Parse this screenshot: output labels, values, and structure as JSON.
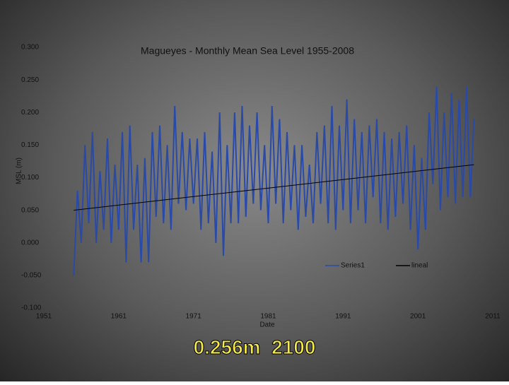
{
  "chart_data": {
    "type": "line",
    "title": "Magueyes - Monthly Mean Sea Level 1955-2008",
    "xlabel": "Date",
    "ylabel": "MSL (m)",
    "xlim": [
      1951,
      2011
    ],
    "xticks": [
      1951,
      1961,
      1971,
      1981,
      1991,
      2001,
      2011
    ],
    "ylim": [
      -0.1,
      0.3
    ],
    "yticks": [
      {
        "value": -0.1,
        "label": "-0.100"
      },
      {
        "value": -0.05,
        "label": "-0.050"
      },
      {
        "value": 0,
        "label": "0.000"
      },
      {
        "value": 0.05,
        "label": "0.050"
      },
      {
        "value": 0.1,
        "label": "0.100"
      },
      {
        "value": 0.15,
        "label": "0.150"
      },
      {
        "value": 0.2,
        "label": "0.200"
      },
      {
        "value": 0.25,
        "label": "0.250"
      },
      {
        "value": 0.3,
        "label": "0.300"
      }
    ],
    "legend": "bottom",
    "series": [
      {
        "name": "Series1",
        "color": "#2a4aa8",
        "x": [
          1955,
          1955.5,
          1956,
          1956.5,
          1957,
          1957.5,
          1958,
          1958.5,
          1959,
          1959.5,
          1960,
          1960.5,
          1961,
          1961.5,
          1962,
          1962.5,
          1963,
          1963.5,
          1964,
          1964.5,
          1965,
          1965.5,
          1966,
          1966.5,
          1967,
          1967.5,
          1968,
          1968.5,
          1969,
          1969.5,
          1970,
          1970.5,
          1971,
          1971.5,
          1972,
          1972.5,
          1973,
          1973.5,
          1974,
          1974.5,
          1975,
          1975.5,
          1976,
          1976.5,
          1977,
          1977.5,
          1978,
          1978.5,
          1979,
          1979.5,
          1980,
          1980.5,
          1981,
          1981.5,
          1982,
          1982.5,
          1983,
          1983.5,
          1984,
          1984.5,
          1985,
          1985.5,
          1986,
          1986.5,
          1987,
          1987.5,
          1988,
          1988.5,
          1989,
          1989.5,
          1990,
          1990.5,
          1991,
          1991.5,
          1992,
          1992.5,
          1993,
          1993.5,
          1994,
          1994.5,
          1995,
          1995.5,
          1996,
          1996.5,
          1997,
          1997.5,
          1998,
          1998.5,
          1999,
          1999.5,
          2000,
          2000.5,
          2001,
          2001.5,
          2002,
          2002.5,
          2003,
          2003.5,
          2004,
          2004.5,
          2005,
          2005.5,
          2006,
          2006.5,
          2007,
          2007.5,
          2008,
          2008.5
        ],
        "values": [
          -0.05,
          0.08,
          0.0,
          0.15,
          0.03,
          0.17,
          0.0,
          0.11,
          0.02,
          0.16,
          0.0,
          0.12,
          0.02,
          0.17,
          -0.03,
          0.18,
          0.02,
          0.12,
          -0.03,
          0.13,
          -0.03,
          0.17,
          0.04,
          0.18,
          0.03,
          0.15,
          0.02,
          0.21,
          0.06,
          0.17,
          0.05,
          0.16,
          0.06,
          0.16,
          0.02,
          0.17,
          0.03,
          0.14,
          0.0,
          0.2,
          -0.02,
          0.15,
          0.03,
          0.2,
          0.03,
          0.21,
          0.04,
          0.18,
          0.06,
          0.2,
          0.05,
          0.15,
          0.03,
          0.21,
          0.06,
          0.19,
          0.03,
          0.17,
          0.05,
          0.15,
          0.02,
          0.15,
          0.04,
          0.12,
          0.03,
          0.17,
          0.06,
          0.18,
          0.03,
          0.21,
          0.02,
          0.18,
          0.05,
          0.22,
          0.03,
          0.19,
          0.05,
          0.17,
          0.03,
          0.18,
          0.07,
          0.19,
          0.03,
          0.17,
          0.02,
          0.16,
          0.04,
          0.17,
          0.06,
          0.18,
          0.02,
          0.15,
          -0.01,
          0.13,
          0.02,
          0.2,
          0.09,
          0.24,
          0.05,
          0.2,
          0.07,
          0.23,
          0.06,
          0.22,
          0.07,
          0.24,
          0.07,
          0.19
        ]
      },
      {
        "name": "lineal",
        "color": "#000000",
        "x": [
          1955,
          2008.5
        ],
        "values": [
          0.05,
          0.12
        ]
      }
    ],
    "annotation": "0.256m  2100"
  }
}
